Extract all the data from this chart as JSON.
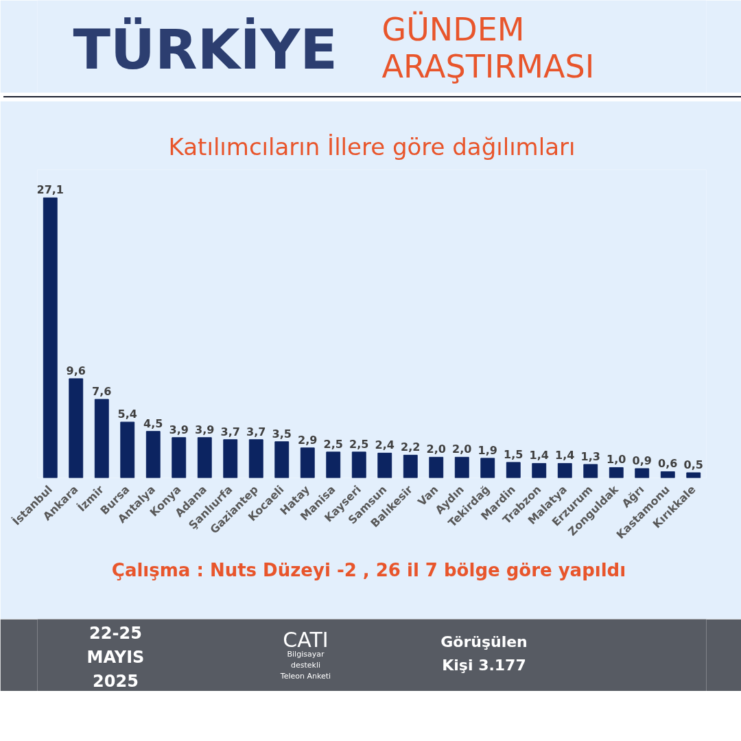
{
  "chart_data": {
    "type": "bar",
    "title": "TÜRKİYE GÜNDEM ARAŞTIRMASI",
    "subtitle": "Katılımcıların İllere göre dağılımları",
    "categories": [
      "İstanbul",
      "Ankara",
      "İzmir",
      "Bursa",
      "Antalya",
      "Konya",
      "Adana",
      "Şanlıurfa",
      "Gaziantep",
      "Kocaeli",
      "Hatay",
      "Manisa",
      "Kayseri",
      "Samsun",
      "Balıkesir",
      "Van",
      "Aydın",
      "Tekirdağ",
      "Mardin",
      "Trabzon",
      "Malatya",
      "Erzurum",
      "Zonguldak",
      "Ağrı",
      "Kastamonu",
      "Kırıkkale"
    ],
    "values": [
      27.1,
      9.6,
      7.6,
      5.4,
      4.5,
      3.9,
      3.9,
      3.7,
      3.7,
      3.5,
      2.9,
      2.5,
      2.5,
      2.4,
      2.2,
      2.0,
      2.0,
      1.9,
      1.5,
      1.4,
      1.4,
      1.3,
      1.0,
      0.9,
      0.6,
      0.5
    ],
    "value_labels": [
      "27,1",
      "9,6",
      "7,6",
      "5,4",
      "4,5",
      "3,9",
      "3,9",
      "3,7",
      "3,7",
      "3,5",
      "2,9",
      "2,5",
      "2,5",
      "2,4",
      "2,2",
      "2,0",
      "2,0",
      "1,9",
      "1,5",
      "1,4",
      "1,4",
      "1,3",
      "1,0",
      "0,9",
      "0,6",
      "0,5"
    ],
    "color": "#0c2461",
    "tick_labels": "x",
    "annotations": [
      "Çalışma : Nuts Düzeyi -2 , 26 il  7 bölge göre yapıldı",
      "22-25\nMAYIS\n2025",
      "CATI",
      "Bilgisayar\ndestekli\nTeleon Anketi",
      "Görüşülen\nKişi 3.177"
    ]
  }
}
